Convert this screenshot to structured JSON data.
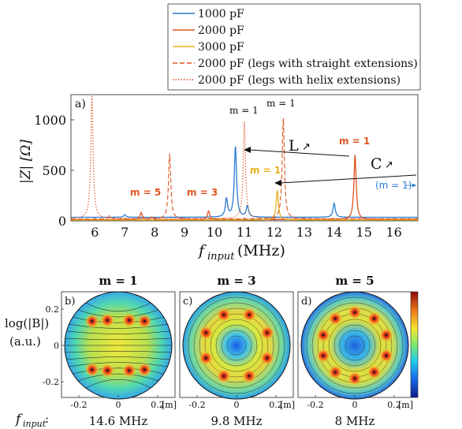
{
  "legend": [
    {
      "label": "1000 pF",
      "color": "#2a7bd0",
      "dash": "solid"
    },
    {
      "label": "2000 pF",
      "color": "#e0531f",
      "dash": "solid"
    },
    {
      "label": "3000 pF",
      "color": "#e8b020",
      "dash": "solid"
    },
    {
      "label": "2000 pF (legs with straight extensions)",
      "color": "#e0531f",
      "dash": "dashed"
    },
    {
      "label": "2000 pF (legs with helix extensions)",
      "color": "#e0531f",
      "dash": "dotted"
    }
  ],
  "colors": {
    "blue": "#2a7bd0",
    "orange": "#e0531f",
    "yellow": "#e8b020"
  },
  "chart_data": [
    {
      "type": "line",
      "panel": "a)",
      "xlabel": "f",
      "xlabel_sub": "input",
      "xlabel_unit": "(MHz)",
      "ylabel": "|Z| [Ω]",
      "xlim": [
        5.2,
        16.8
      ],
      "ylim": [
        0,
        1250
      ],
      "xticks": [
        6,
        7,
        8,
        9,
        10,
        11,
        12,
        13,
        14,
        15,
        16
      ],
      "yticks": [
        0,
        500,
        1000
      ],
      "series": [
        {
          "name": "1000 pF",
          "base": 35,
          "peaks": [
            [
              7.0,
              25
            ],
            [
              10.4,
              180
            ],
            [
              10.7,
              700
            ],
            [
              11.1,
              110
            ],
            [
              14.0,
              140
            ]
          ]
        },
        {
          "name": "2000 pF",
          "base": 12,
          "peaks": [
            [
              7.55,
              70
            ],
            [
              7.9,
              25
            ],
            [
              9.8,
              85
            ],
            [
              14.7,
              640
            ]
          ]
        },
        {
          "name": "3000 pF",
          "base": 8,
          "peaks": [
            [
              12.1,
              290
            ]
          ]
        },
        {
          "name": "2000 pF (legs with straight extensions)",
          "base": 18,
          "peaks": [
            [
              6.5,
              40
            ],
            [
              8.5,
              650
            ],
            [
              12.3,
              1000
            ]
          ]
        },
        {
          "name": "2000 pF (legs with helix extensions)",
          "base": 22,
          "peaks": [
            [
              5.9,
              1230
            ],
            [
              11.0,
              960
            ]
          ]
        }
      ],
      "annotations": {
        "m1_black_a": "m = 1",
        "m1_black_b": "m = 1",
        "m1_orange": "m = 1",
        "m1_yellow": "m = 1",
        "m3": "m = 3",
        "m5": "m = 5",
        "m1_blue": "(m = 1)",
        "L": "L",
        "C": "C",
        "arrow": "↗"
      }
    }
  ],
  "maps": {
    "ylabel_line1": "log(|B|)",
    "ylabel_line2": "(a.u.)",
    "finput_label": "f",
    "finput_sub": "input",
    "finput_colon": ":",
    "unit": "[m]",
    "xticks": [
      "-0.2",
      "0",
      "0.2"
    ],
    "yticks": [
      "0.2",
      "0",
      "-0.2"
    ],
    "panels": [
      {
        "title": "m = 1",
        "label": "b)",
        "freq": "14.6 MHz",
        "mode": 1
      },
      {
        "title": "m = 3",
        "label": "c)",
        "freq": "9.8 MHz",
        "mode": 3
      },
      {
        "title": "m = 5",
        "label": "d)",
        "freq": "8 MHz",
        "mode": 5
      }
    ]
  }
}
